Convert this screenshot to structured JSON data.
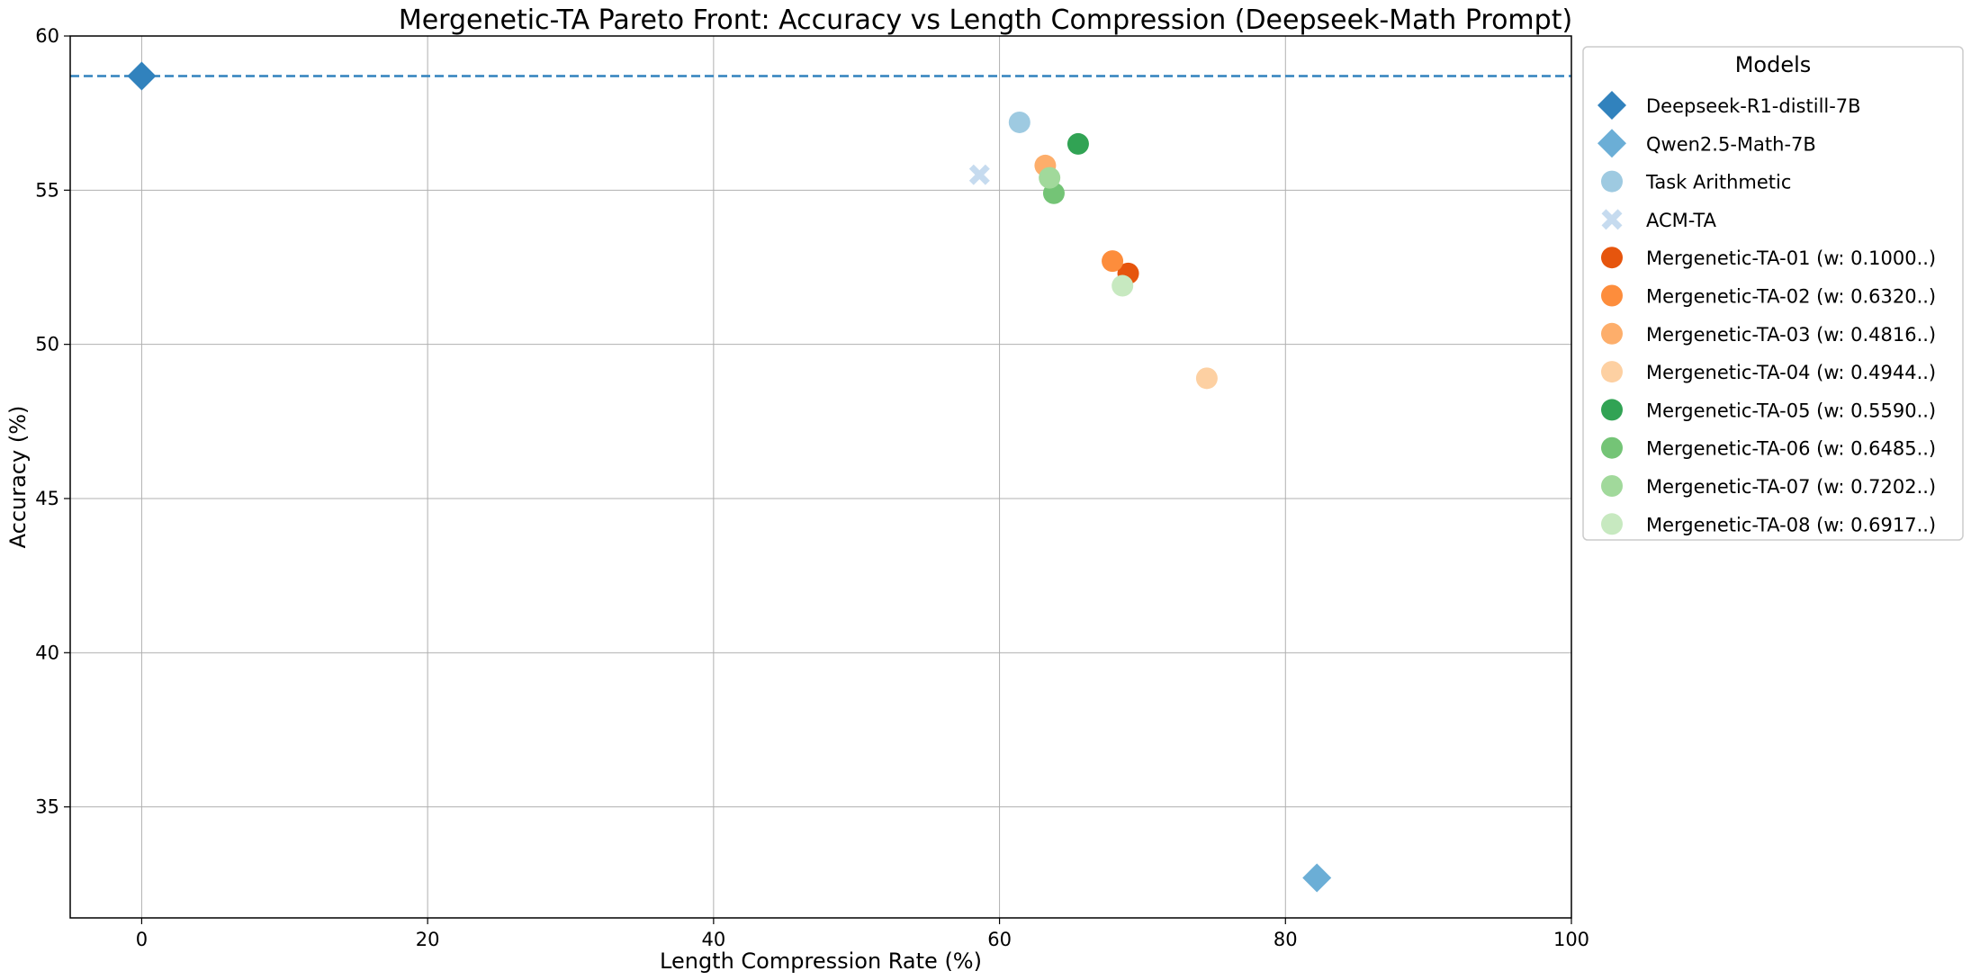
{
  "chart_data": {
    "type": "scatter",
    "title": "Mergenetic-TA Pareto Front: Accuracy vs Length Compression (Deepseek-Math Prompt)",
    "xlabel": "Length Compression Rate (%)",
    "ylabel": "Accuracy (%)",
    "xlim": [
      -5,
      100
    ],
    "ylim": [
      31.4,
      60
    ],
    "x_ticks": [
      "0",
      "20",
      "40",
      "60",
      "80",
      "100"
    ],
    "y_ticks": [
      "35",
      "40",
      "45",
      "50",
      "55",
      "60"
    ],
    "grid": true,
    "legend_title": "Models",
    "legend_position": "outside-right",
    "reference_line": {
      "y": 58.7,
      "color": "#3182bd",
      "style": "dashed"
    },
    "series": [
      {
        "name": "Deepseek-R1-distill-7B",
        "marker": "diamond",
        "color": "#3182bd",
        "x": 0,
        "y": 58.7
      },
      {
        "name": "Qwen2.5-Math-7B",
        "marker": "diamond",
        "color": "#6baed6",
        "x": 82.2,
        "y": 32.7
      },
      {
        "name": "Task Arithmetic",
        "marker": "circle",
        "color": "#9ecae1",
        "x": 61.4,
        "y": 57.2
      },
      {
        "name": "ACM-TA",
        "marker": "x",
        "color": "#c6dbef",
        "x": 58.6,
        "y": 55.5
      },
      {
        "name": "Mergenetic-TA-01 (w: 0.1000..)",
        "marker": "circle",
        "color": "#e6550d",
        "x": 69.0,
        "y": 52.3
      },
      {
        "name": "Mergenetic-TA-02 (w: 0.6320..)",
        "marker": "circle",
        "color": "#fd8d3c",
        "x": 67.9,
        "y": 52.7
      },
      {
        "name": "Mergenetic-TA-03 (w: 0.4816..)",
        "marker": "circle",
        "color": "#fdae6b",
        "x": 63.2,
        "y": 55.8
      },
      {
        "name": "Mergenetic-TA-04 (w: 0.4944..)",
        "marker": "circle",
        "color": "#fdd0a2",
        "x": 74.5,
        "y": 48.9
      },
      {
        "name": "Mergenetic-TA-05 (w: 0.5590..)",
        "marker": "circle",
        "color": "#31a354",
        "x": 65.5,
        "y": 56.5
      },
      {
        "name": "Mergenetic-TA-06 (w: 0.6485..)",
        "marker": "circle",
        "color": "#74c476",
        "x": 63.8,
        "y": 54.9
      },
      {
        "name": "Mergenetic-TA-07 (w: 0.7202..)",
        "marker": "circle",
        "color": "#a1d99b",
        "x": 63.5,
        "y": 55.4
      },
      {
        "name": "Mergenetic-TA-08 (w: 0.6917..)",
        "marker": "circle",
        "color": "#c7e9c0",
        "x": 68.6,
        "y": 51.9
      }
    ]
  }
}
